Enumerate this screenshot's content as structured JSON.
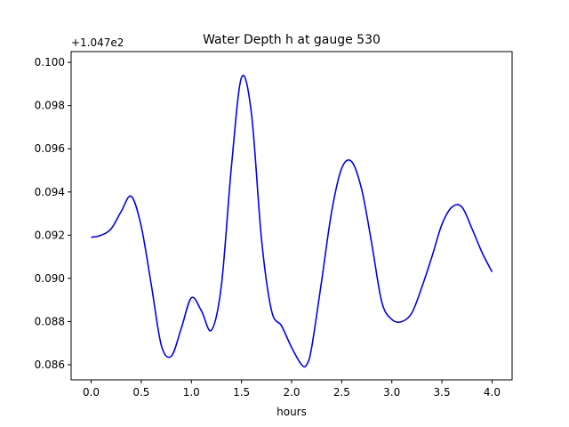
{
  "chart_data": {
    "type": "line",
    "title": "Water Depth h at gauge 530",
    "xlabel": "hours",
    "ylabel": "",
    "y_offset_label": "+1.047e2",
    "xlim": [
      -0.2,
      4.2
    ],
    "ylim": [
      0.0853,
      0.1005
    ],
    "x_ticks": [
      0.0,
      0.5,
      1.0,
      1.5,
      2.0,
      2.5,
      3.0,
      3.5,
      4.0
    ],
    "x_tick_labels": [
      "0.0",
      "0.5",
      "1.0",
      "1.5",
      "2.0",
      "2.5",
      "3.0",
      "3.5",
      "4.0"
    ],
    "y_ticks": [
      0.086,
      0.088,
      0.09,
      0.092,
      0.094,
      0.096,
      0.098,
      0.1
    ],
    "y_tick_labels": [
      "0.086",
      "0.088",
      "0.090",
      "0.092",
      "0.094",
      "0.096",
      "0.098",
      "0.100"
    ],
    "grid": false,
    "series": [
      {
        "color": "#0000ff",
        "x": [
          0.0,
          0.1,
          0.2,
          0.3,
          0.4,
          0.5,
          0.6,
          0.7,
          0.8,
          0.9,
          1.0,
          1.1,
          1.2,
          1.3,
          1.4,
          1.5,
          1.6,
          1.7,
          1.8,
          1.9,
          2.0,
          2.1,
          2.15,
          2.2,
          2.3,
          2.4,
          2.5,
          2.6,
          2.7,
          2.8,
          2.9,
          3.0,
          3.1,
          3.2,
          3.3,
          3.4,
          3.5,
          3.6,
          3.7,
          3.8,
          3.9,
          4.0
        ],
        "values": [
          0.0919,
          0.092,
          0.0923,
          0.0931,
          0.0938,
          0.0924,
          0.0897,
          0.0869,
          0.0864,
          0.0877,
          0.0891,
          0.0885,
          0.0876,
          0.0897,
          0.0952,
          0.0993,
          0.0976,
          0.0918,
          0.0885,
          0.0878,
          0.0868,
          0.086,
          0.086,
          0.0868,
          0.0899,
          0.0931,
          0.0951,
          0.0954,
          0.0941,
          0.0916,
          0.0889,
          0.0881,
          0.088,
          0.0884,
          0.0896,
          0.091,
          0.0925,
          0.0933,
          0.0933,
          0.0923,
          0.0912,
          0.0903
        ]
      }
    ]
  }
}
